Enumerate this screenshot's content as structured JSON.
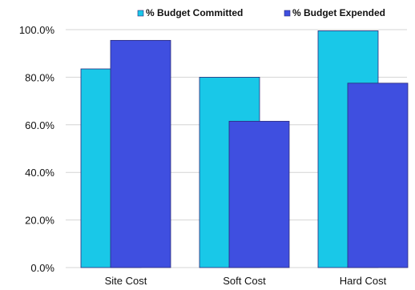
{
  "chart_data": {
    "type": "bar",
    "title": "",
    "xlabel": "",
    "ylabel": "",
    "categories": [
      "Site Cost",
      "Soft Cost",
      "Hard Cost"
    ],
    "series": [
      {
        "name": "% Budget Committed",
        "color": "#19c8e8",
        "values": [
          83.5,
          80.0,
          99.5
        ]
      },
      {
        "name": "% Budget Expended",
        "color": "#3f4fe0",
        "values": [
          95.5,
          61.5,
          77.5
        ]
      }
    ],
    "ylim": [
      0,
      100
    ],
    "yticks": [
      0,
      20,
      40,
      60,
      80,
      100
    ],
    "ytick_labels": [
      "0.0%",
      "20.0%",
      "40.0%",
      "60.0%",
      "80.0%",
      "100.0%"
    ],
    "grid": true,
    "legend": "top-right"
  }
}
